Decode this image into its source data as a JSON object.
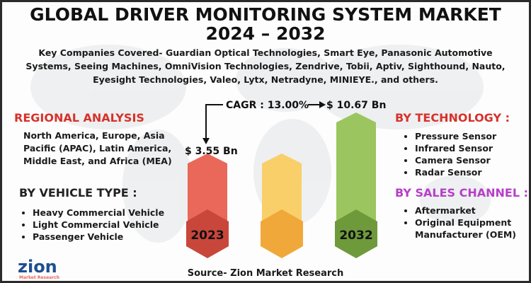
{
  "header": {
    "title_lines": [
      "GLOBAL DRIVER MONITORING SYSTEM MARKET",
      "2024 – 2032"
    ],
    "companies": "Key Companies Covered- Guardian Optical Technologies, Smart Eye, Panasonic Automotive Systems, Seeing Machines, OmniVision Technologies, Zendrive, Tobii, Aptiv, Sighthound, Nauto, Eyesight Technologies, Valeo, Lytx, Netradyne, MINIEYE., and others."
  },
  "regional": {
    "heading": "REGIONAL ANALYSIS",
    "text": "North America, Europe, Asia Pacific (APAC), Latin America, Middle East, and Africa (MEA)"
  },
  "vehicle": {
    "heading": "BY VEHICLE TYPE :",
    "items": [
      "Heavy Commercial Vehicle",
      "Light Commercial Vehicle",
      "Passenger Vehicle"
    ]
  },
  "technology": {
    "heading": "BY TECHNOLOGY :",
    "items": [
      "Pressure Sensor",
      "Infrared Sensor",
      "Camera Sensor",
      "Radar Sensor"
    ]
  },
  "sales": {
    "heading": "BY SALES CHANNEL :",
    "items": [
      "Aftermarket",
      "Original Equipment Manufacturer (OEM)"
    ]
  },
  "graphic": {
    "cagr": "CAGR : 13.00%",
    "start_value": "$ 3.55 Bn",
    "end_value": "$ 10.67 Bn",
    "start_year": "2023",
    "end_year": "2032"
  },
  "logo": {
    "name": "zion",
    "sub": "Market Research"
  },
  "footer": {
    "source": "Source- Zion Market Research"
  }
}
